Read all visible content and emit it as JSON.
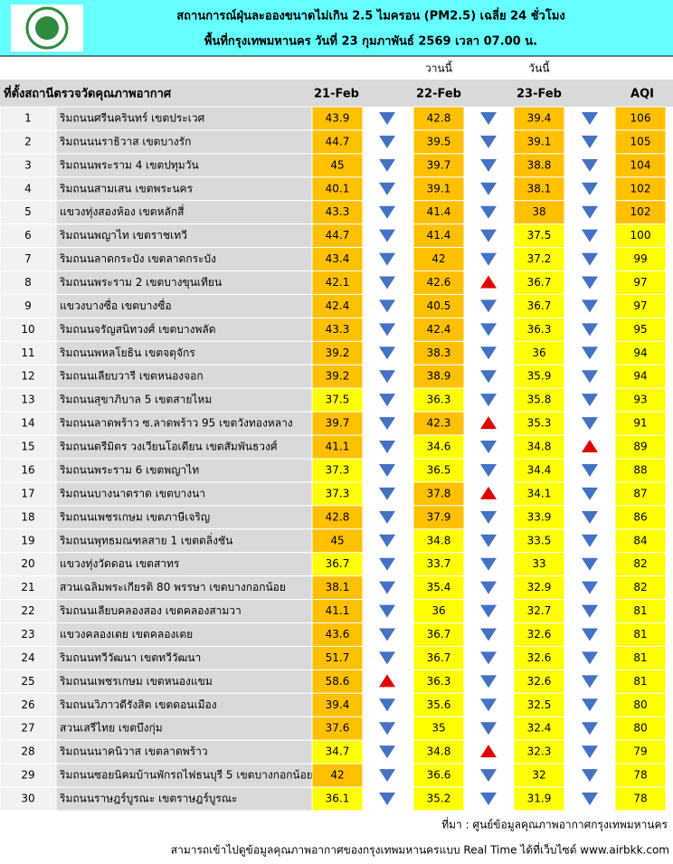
{
  "header": {
    "title": "สถานการณ์ฝุ่นละอองขนาดไม่เกิน 2.5 ไมครอน (PM2.5) เฉลี่ย 24 ชั่วโมง",
    "subtitle": "พื้นที่กรุงเทพมหานคร วันที่ 23 กุมภาพันธ์ 2569 เวลา 07.00 น."
  },
  "table": {
    "day_notes": [
      "วานนี้",
      "วันนี้"
    ],
    "columns": [
      "ที่ตั้งสถานีตรวจวัดคุณภาพอากาศ",
      "21-Feb",
      "22-Feb",
      "23-Feb",
      "AQI"
    ],
    "level_colors": {
      "orange": "#ffc000",
      "yellow": "#ffff00"
    },
    "trend_colors": {
      "down": "#4472c4",
      "up": "#e00000"
    },
    "rows": [
      {
        "no": 1,
        "station": "ริมถนนศรีนครินทร์ เขตประเวศ",
        "pm": [
          43.9,
          42.8,
          39.4
        ],
        "trend": [
          "down",
          "down",
          "down"
        ],
        "aqi": 106,
        "level": [
          "orange",
          "orange",
          "orange",
          "orange"
        ]
      },
      {
        "no": 2,
        "station": "ริมถนนนราธิวาส เขตบางรัก",
        "pm": [
          44.7,
          39.5,
          39.1
        ],
        "trend": [
          "down",
          "down",
          "down"
        ],
        "aqi": 105,
        "level": [
          "orange",
          "orange",
          "orange",
          "orange"
        ]
      },
      {
        "no": 3,
        "station": "ริมถนนพระราม 4 เขตปทุมวัน",
        "pm": [
          45,
          39.7,
          38.8
        ],
        "trend": [
          "down",
          "down",
          "down"
        ],
        "aqi": 104,
        "level": [
          "orange",
          "orange",
          "orange",
          "orange"
        ]
      },
      {
        "no": 4,
        "station": "ริมถนนสามเสน เขตพระนคร",
        "pm": [
          40.1,
          39.1,
          38.1
        ],
        "trend": [
          "down",
          "down",
          "down"
        ],
        "aqi": 102,
        "level": [
          "orange",
          "orange",
          "orange",
          "orange"
        ]
      },
      {
        "no": 5,
        "station": "แขวงทุ่งสองห้อง เขตหลักสี่",
        "pm": [
          43.3,
          41.4,
          38
        ],
        "trend": [
          "down",
          "down",
          "down"
        ],
        "aqi": 102,
        "level": [
          "orange",
          "orange",
          "orange",
          "orange"
        ]
      },
      {
        "no": 6,
        "station": "ริมถนนพญาไท เขตราชเทวี",
        "pm": [
          44.7,
          41.4,
          37.5
        ],
        "trend": [
          "down",
          "down",
          "down"
        ],
        "aqi": 100,
        "level": [
          "orange",
          "orange",
          "yellow",
          "yellow"
        ]
      },
      {
        "no": 7,
        "station": "ริมถนนลาดกระบัง เขตลาดกระบัง",
        "pm": [
          43.4,
          42,
          37.2
        ],
        "trend": [
          "down",
          "down",
          "down"
        ],
        "aqi": 99,
        "level": [
          "orange",
          "orange",
          "yellow",
          "yellow"
        ]
      },
      {
        "no": 8,
        "station": "ริมถนนพระราม 2 เขตบางขุนเทียน",
        "pm": [
          42.1,
          42.6,
          36.7
        ],
        "trend": [
          "down",
          "up",
          "down"
        ],
        "aqi": 97,
        "level": [
          "orange",
          "orange",
          "yellow",
          "yellow"
        ]
      },
      {
        "no": 9,
        "station": "แขวงบางซื่อ เขตบางซื่อ",
        "pm": [
          42.4,
          40.5,
          36.7
        ],
        "trend": [
          "down",
          "down",
          "down"
        ],
        "aqi": 97,
        "level": [
          "orange",
          "orange",
          "yellow",
          "yellow"
        ]
      },
      {
        "no": 10,
        "station": "ริมถนนจรัญสนิทวงศ์ เขตบางพลัด",
        "pm": [
          43.3,
          42.4,
          36.3
        ],
        "trend": [
          "down",
          "down",
          "down"
        ],
        "aqi": 95,
        "level": [
          "orange",
          "orange",
          "yellow",
          "yellow"
        ]
      },
      {
        "no": 11,
        "station": "ริมถนนพหลโยธิน เขตจตุจักร",
        "pm": [
          39.2,
          38.3,
          36
        ],
        "trend": [
          "down",
          "down",
          "down"
        ],
        "aqi": 94,
        "level": [
          "orange",
          "orange",
          "yellow",
          "yellow"
        ]
      },
      {
        "no": 12,
        "station": "ริมถนนเลียบวารี เขตหนองจอก",
        "pm": [
          39.2,
          38.9,
          35.9
        ],
        "trend": [
          "down",
          "down",
          "down"
        ],
        "aqi": 94,
        "level": [
          "orange",
          "orange",
          "yellow",
          "yellow"
        ]
      },
      {
        "no": 13,
        "station": "ริมถนนสุขาภิบาล 5 เขตสายไหม",
        "pm": [
          37.5,
          36.3,
          35.8
        ],
        "trend": [
          "down",
          "down",
          "down"
        ],
        "aqi": 93,
        "level": [
          "yellow",
          "yellow",
          "yellow",
          "yellow"
        ]
      },
      {
        "no": 14,
        "station": "ริมถนนลาดพร้าว ซ.ลาดพร้าว 95 เขตวังทองหลาง",
        "pm": [
          39.7,
          42.3,
          35.3
        ],
        "trend": [
          "down",
          "up",
          "down"
        ],
        "aqi": 91,
        "level": [
          "orange",
          "orange",
          "yellow",
          "yellow"
        ]
      },
      {
        "no": 15,
        "station": "ริมถนนตรีมิตร วงเวียนโอเดียน เขตสัมพันธวงศ์",
        "pm": [
          41.1,
          34.6,
          34.8
        ],
        "trend": [
          "down",
          "down",
          "up"
        ],
        "aqi": 89,
        "level": [
          "orange",
          "yellow",
          "yellow",
          "yellow"
        ]
      },
      {
        "no": 16,
        "station": "ริมถนนพระราม 6 เขตพญาไท",
        "pm": [
          37.3,
          36.5,
          34.4
        ],
        "trend": [
          "down",
          "down",
          "down"
        ],
        "aqi": 88,
        "level": [
          "yellow",
          "yellow",
          "yellow",
          "yellow"
        ]
      },
      {
        "no": 17,
        "station": "ริมถนนบางนาตราด เขตบางนา",
        "pm": [
          37.3,
          37.8,
          34.1
        ],
        "trend": [
          "down",
          "up",
          "down"
        ],
        "aqi": 87,
        "level": [
          "yellow",
          "orange",
          "yellow",
          "yellow"
        ]
      },
      {
        "no": 18,
        "station": "ริมถนนเพชรเกษม เขตภาษีเจริญ",
        "pm": [
          42.8,
          37.9,
          33.9
        ],
        "trend": [
          "down",
          "down",
          "down"
        ],
        "aqi": 86,
        "level": [
          "orange",
          "orange",
          "yellow",
          "yellow"
        ]
      },
      {
        "no": 19,
        "station": "ริมถนนพุทธมณฑลสาย 1 เขตตลิ่งชัน",
        "pm": [
          45,
          34.8,
          33.5
        ],
        "trend": [
          "down",
          "down",
          "down"
        ],
        "aqi": 84,
        "level": [
          "orange",
          "yellow",
          "yellow",
          "yellow"
        ]
      },
      {
        "no": 20,
        "station": "แขวงทุ่งวัดดอน เขตสาทร",
        "pm": [
          36.7,
          33.7,
          33
        ],
        "trend": [
          "down",
          "down",
          "down"
        ],
        "aqi": 82,
        "level": [
          "yellow",
          "yellow",
          "yellow",
          "yellow"
        ]
      },
      {
        "no": 21,
        "station": "สวนเฉลิมพระเกียรติ 80 พรรษา  เขตบางกอกน้อย",
        "pm": [
          38.1,
          35.4,
          32.9
        ],
        "trend": [
          "down",
          "down",
          "down"
        ],
        "aqi": 82,
        "level": [
          "orange",
          "yellow",
          "yellow",
          "yellow"
        ]
      },
      {
        "no": 22,
        "station": "ริมถนนเลียบคลองสอง เขตคลองสามวา",
        "pm": [
          41.1,
          36,
          32.7
        ],
        "trend": [
          "down",
          "down",
          "down"
        ],
        "aqi": 81,
        "level": [
          "orange",
          "yellow",
          "yellow",
          "yellow"
        ]
      },
      {
        "no": 23,
        "station": "แขวงคลองเตย เขตคลองเตย",
        "pm": [
          43.6,
          36.7,
          32.6
        ],
        "trend": [
          "down",
          "down",
          "down"
        ],
        "aqi": 81,
        "level": [
          "orange",
          "yellow",
          "yellow",
          "yellow"
        ]
      },
      {
        "no": 24,
        "station": "ริมถนนทวีวัฒนา เขตทวีวัฒนา",
        "pm": [
          51.7,
          36.7,
          32.6
        ],
        "trend": [
          "down",
          "down",
          "down"
        ],
        "aqi": 81,
        "level": [
          "orange",
          "yellow",
          "yellow",
          "yellow"
        ]
      },
      {
        "no": 25,
        "station": "ริมถนนเพชรเกษม เขตหนองแขม",
        "pm": [
          58.6,
          36.3,
          32.6
        ],
        "trend": [
          "up",
          "down",
          "down"
        ],
        "aqi": 81,
        "level": [
          "orange",
          "yellow",
          "yellow",
          "yellow"
        ]
      },
      {
        "no": 26,
        "station": "ริมถนนวิภาวดีรังสิต เขตดอนเมือง",
        "pm": [
          39.4,
          35.6,
          32.5
        ],
        "trend": [
          "down",
          "down",
          "down"
        ],
        "aqi": 80,
        "level": [
          "orange",
          "yellow",
          "yellow",
          "yellow"
        ]
      },
      {
        "no": 27,
        "station": "สวนเสรีไทย  เขตบึงกุ่ม",
        "pm": [
          37.6,
          35,
          32.4
        ],
        "trend": [
          "down",
          "down",
          "down"
        ],
        "aqi": 80,
        "level": [
          "orange",
          "yellow",
          "yellow",
          "yellow"
        ]
      },
      {
        "no": 28,
        "station": "ริมถนนนาคนิวาส เขตลาดพร้าว",
        "pm": [
          34.7,
          34.8,
          32.3
        ],
        "trend": [
          "down",
          "up",
          "down"
        ],
        "aqi": 79,
        "level": [
          "yellow",
          "yellow",
          "yellow",
          "yellow"
        ]
      },
      {
        "no": 29,
        "station": "ริมถนนซอยนิคมบ้านพักรถไฟธนบุรี 5 เขตบางกอกน้อย",
        "pm": [
          42,
          36.6,
          32
        ],
        "trend": [
          "down",
          "down",
          "down"
        ],
        "aqi": 78,
        "level": [
          "orange",
          "yellow",
          "yellow",
          "yellow"
        ]
      },
      {
        "no": 30,
        "station": "ริมถนนราษฎร์บูรณะ เขตราษฎร์บูรณะ",
        "pm": [
          36.1,
          35.2,
          31.9
        ],
        "trend": [
          "down",
          "down",
          "down"
        ],
        "aqi": 78,
        "level": [
          "yellow",
          "yellow",
          "yellow",
          "yellow"
        ]
      }
    ]
  },
  "footer": {
    "source": "ที่มา : ศูนย์ข้อมูลคุณภาพอากาศกรุงเทพมหานคร",
    "note": "สามารถเข้าไปดูข้อมูลคุณภาพอากาศของกรุงเทพมหานครแบบ Real Time ได้ที่เว็บไซต์ www.airbkk.com"
  }
}
